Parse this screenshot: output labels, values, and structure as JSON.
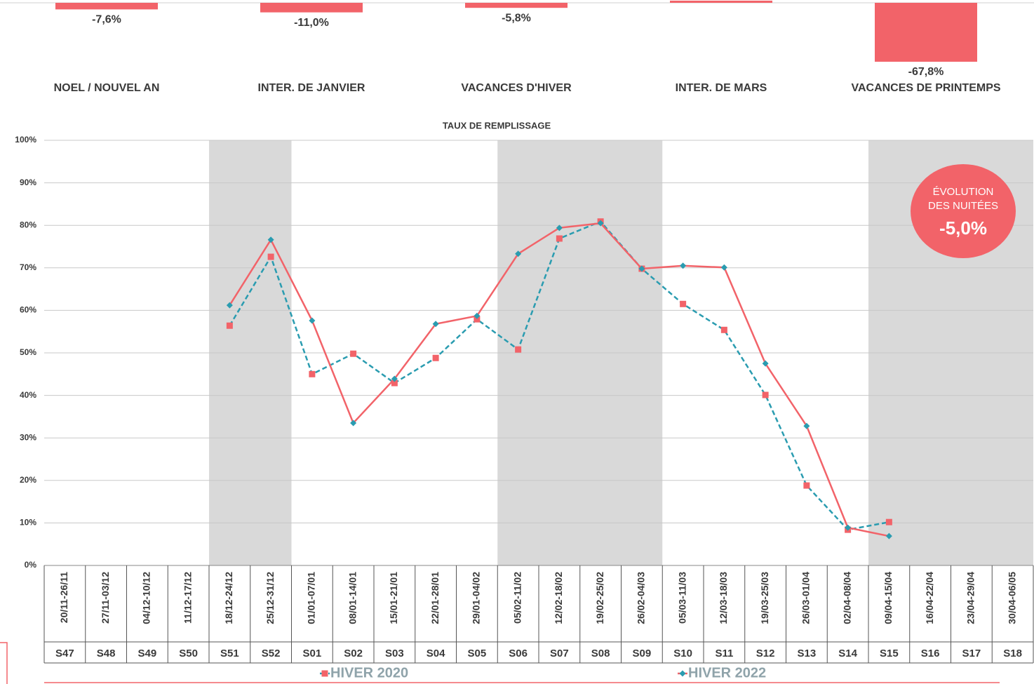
{
  "chart_data": [
    {
      "type": "bar",
      "categories": [
        "NOEL / NOUVEL AN",
        "INTER. DE JANVIER",
        "VACANCES D'HIVER",
        "INTER. DE MARS",
        "VACANCES DE PRINTEMPS"
      ],
      "values": [
        -7.6,
        -11.0,
        -5.8,
        2.5,
        -67.8
      ],
      "value_labels": [
        "-7,6%",
        "-11,0%",
        "-5,8%",
        null,
        "-67,8%"
      ],
      "color": "#f26369"
    },
    {
      "type": "line",
      "title": "TAUX DE REMPLISSAGE",
      "categories": [
        "20/11-26/11",
        "27/11-03/12",
        "04/12-10/12",
        "11/12-17/12",
        "18/12-24/12",
        "25/12-31/12",
        "01/01-07/01",
        "08/01-14/01",
        "15/01-21/01",
        "22/01-28/01",
        "29/01-04/02",
        "05/02-11/02",
        "12/02-18/02",
        "19/02-25/02",
        "26/02-04/03",
        "05/03-11/03",
        "12/03-18/03",
        "19/03-25/03",
        "26/03-01/04",
        "02/04-08/04",
        "09/04-15/04",
        "16/04-22/04",
        "23/04-29/04",
        "30/04-06/05"
      ],
      "week_labels": [
        "S47",
        "S48",
        "S49",
        "S50",
        "S51",
        "S52",
        "S01",
        "S02",
        "S03",
        "S04",
        "S05",
        "S06",
        "S07",
        "S08",
        "S09",
        "S10",
        "S11",
        "S12",
        "S13",
        "S14",
        "S15",
        "S16",
        "S17",
        "S18"
      ],
      "shaded_periods": [
        {
          "from": "S51",
          "to": "S52"
        },
        {
          "from": "S06",
          "to": "S09"
        },
        {
          "from": "S15",
          "to": "S18"
        }
      ],
      "series": [
        {
          "name": "HIVER 2020",
          "color": "#2a9cb0",
          "marker_color": "#f26369",
          "marker": "square",
          "dashed": true,
          "values": [
            null,
            null,
            null,
            null,
            56.4,
            72.6,
            45.0,
            49.8,
            42.9,
            48.8,
            57.9,
            50.8,
            76.9,
            80.9,
            69.8,
            61.5,
            55.4,
            40.1,
            18.8,
            8.4,
            10.2,
            null,
            null,
            null
          ]
        },
        {
          "name": "HIVER 2022",
          "color": "#f26369",
          "marker_color": "#2a9cb0",
          "marker": "diamond",
          "dashed": false,
          "values": [
            null,
            null,
            null,
            null,
            61.2,
            76.6,
            57.6,
            33.5,
            43.9,
            56.8,
            58.7,
            73.3,
            79.4,
            80.5,
            69.8,
            70.5,
            70.1,
            47.5,
            32.8,
            8.9,
            6.9,
            null,
            null,
            null
          ]
        }
      ],
      "ylim": [
        0,
        100
      ],
      "yticks": [
        {
          "value": 0,
          "label": "0%"
        },
        {
          "value": 10,
          "label": "10%"
        },
        {
          "value": 20,
          "label": "20%"
        },
        {
          "value": 30,
          "label": "30%"
        },
        {
          "value": 40,
          "label": "40%"
        },
        {
          "value": 50,
          "label": "50%"
        },
        {
          "value": 60,
          "label": "60%"
        },
        {
          "value": 70,
          "label": "70%"
        },
        {
          "value": 80,
          "label": "80%"
        },
        {
          "value": 90,
          "label": "90%"
        },
        {
          "value": 100,
          "label": "100%"
        }
      ],
      "grid": true,
      "shade_color": "#d9d9d9",
      "legend_position": "bottom",
      "annotation": {
        "lines": [
          "ÉVOLUTION",
          "DES NUITÉES"
        ],
        "text": "-5,0%",
        "color": "#f26369"
      }
    }
  ]
}
